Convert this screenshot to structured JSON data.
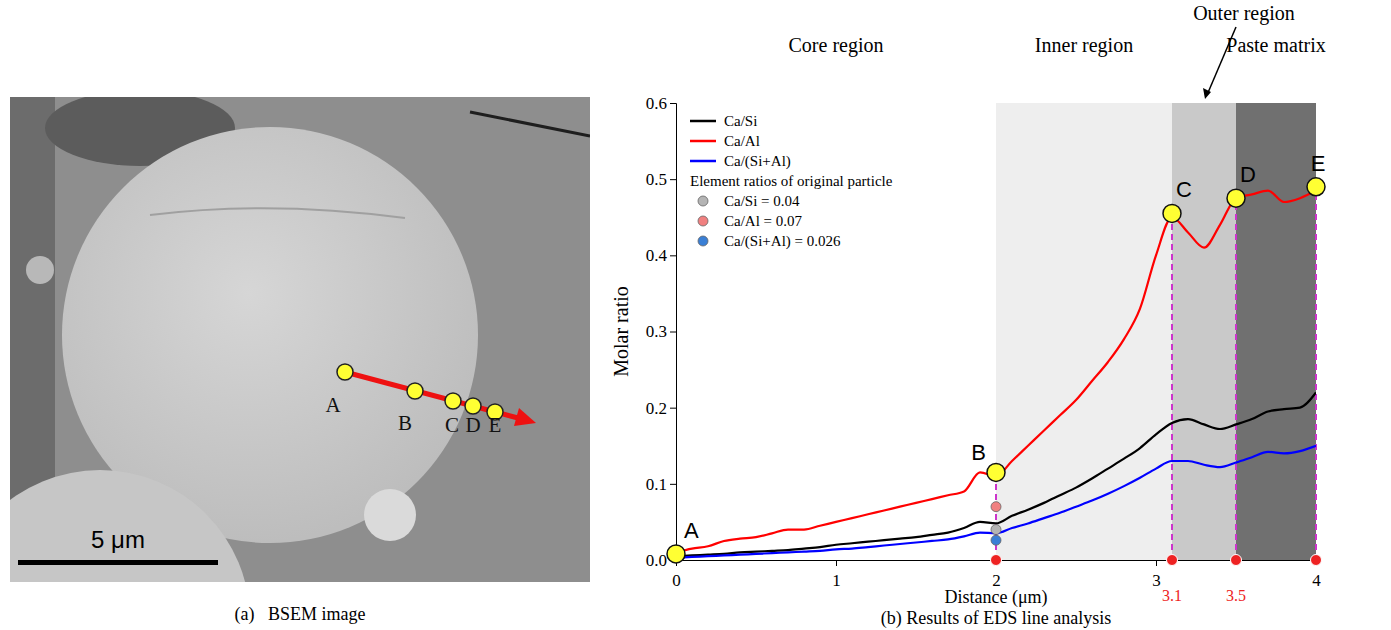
{
  "image_panel": {
    "caption": "(a)   BSEM image",
    "point_labels": [
      "A",
      "B",
      "C",
      "D",
      "E"
    ],
    "scale_bar": "5 μm"
  },
  "chart_data": {
    "type": "line",
    "caption": "(b) Results of EDS line analysis",
    "x_label": "Distance (μm)",
    "y_label": "Molar ratio",
    "xlim": [
      0,
      4
    ],
    "ylim": [
      0,
      0.6
    ],
    "xticks": [
      0,
      1,
      2,
      3,
      4
    ],
    "yticks": [
      {
        "value": 0,
        "label": "0.0"
      },
      0.1,
      0.2,
      0.3,
      0.4,
      0.5,
      0.6
    ],
    "legend": "top-left",
    "x": [
      0,
      0.1,
      0.2,
      0.3,
      0.4,
      0.5,
      0.6,
      0.7,
      0.8,
      0.9,
      1,
      1.1,
      1.2,
      1.3,
      1.4,
      1.5,
      1.6,
      1.7,
      1.8,
      1.9,
      2,
      2.1,
      2.2,
      2.3,
      2.4,
      2.5,
      2.6,
      2.7,
      2.8,
      2.9,
      3,
      3.1,
      3.2,
      3.3,
      3.4,
      3.5,
      3.6,
      3.7,
      3.8,
      3.9,
      4
    ],
    "series": [
      {
        "name": "Ca/Si",
        "color": "#000000",
        "values": [
          0.005,
          0.006,
          0.007,
          0.008,
          0.01,
          0.011,
          0.012,
          0.013,
          0.015,
          0.017,
          0.02,
          0.022,
          0.024,
          0.026,
          0.028,
          0.03,
          0.033,
          0.036,
          0.042,
          0.05,
          0.048,
          0.058,
          0.066,
          0.075,
          0.085,
          0.095,
          0.107,
          0.12,
          0.133,
          0.147,
          0.165,
          0.18,
          0.185,
          0.178,
          0.172,
          0.178,
          0.185,
          0.195,
          0.198,
          0.2,
          0.22
        ]
      },
      {
        "name": "Ca/Al",
        "color": "#ff0000",
        "values": [
          0.01,
          0.015,
          0.018,
          0.025,
          0.028,
          0.03,
          0.035,
          0.04,
          0.04,
          0.045,
          0.05,
          0.055,
          0.06,
          0.065,
          0.07,
          0.075,
          0.08,
          0.085,
          0.09,
          0.115,
          0.11,
          0.13,
          0.15,
          0.17,
          0.19,
          0.21,
          0.235,
          0.26,
          0.29,
          0.33,
          0.4,
          0.45,
          0.43,
          0.41,
          0.44,
          0.475,
          0.48,
          0.485,
          0.47,
          0.475,
          0.485
        ]
      },
      {
        "name": "Ca/(Si+Al)",
        "color": "#0000ff",
        "values": [
          0.003,
          0.004,
          0.005,
          0.006,
          0.007,
          0.008,
          0.009,
          0.01,
          0.011,
          0.012,
          0.014,
          0.015,
          0.017,
          0.019,
          0.021,
          0.023,
          0.025,
          0.027,
          0.031,
          0.036,
          0.035,
          0.042,
          0.048,
          0.055,
          0.062,
          0.07,
          0.078,
          0.087,
          0.097,
          0.108,
          0.12,
          0.13,
          0.13,
          0.125,
          0.122,
          0.128,
          0.135,
          0.142,
          0.14,
          0.143,
          0.15
        ]
      }
    ],
    "original_particle": {
      "title": "Element ratios of original particle",
      "points": [
        {
          "name": "Ca/Si = 0.04",
          "x": 2,
          "value": 0.04,
          "color": "#b4b4b4"
        },
        {
          "name": "Ca/Al = 0.07",
          "x": 2,
          "value": 0.07,
          "color": "#f08080"
        },
        {
          "name": "Ca/(Si+Al) = 0.026",
          "x": 2,
          "value": 0.026,
          "color": "#3a7fd5"
        }
      ]
    },
    "markers": [
      {
        "label": "A",
        "x": 0,
        "y": 0.008
      },
      {
        "label": "B",
        "x": 2,
        "y": 0.115
      },
      {
        "label": "C",
        "x": 3.1,
        "y": 0.455
      },
      {
        "label": "D",
        "x": 3.5,
        "y": 0.475
      },
      {
        "label": "E",
        "x": 4,
        "y": 0.49
      }
    ],
    "regions": [
      {
        "name": "Core region",
        "from": 0,
        "to": 2,
        "color": "#ffffff"
      },
      {
        "name": "Inner region",
        "from": 2,
        "to": 3.1,
        "color": "#eeeeee"
      },
      {
        "name": "Outer region",
        "from": 3.1,
        "to": 3.5,
        "color": "#c9c9c9"
      },
      {
        "name": "Paste matrix",
        "from": 3.5,
        "to": 4,
        "color": "#707070"
      }
    ],
    "boundaries": [
      {
        "value": 2
      },
      {
        "value": 3.1,
        "label": "3.1"
      },
      {
        "value": 3.5,
        "label": "3.5"
      },
      {
        "value": 4
      }
    ]
  }
}
